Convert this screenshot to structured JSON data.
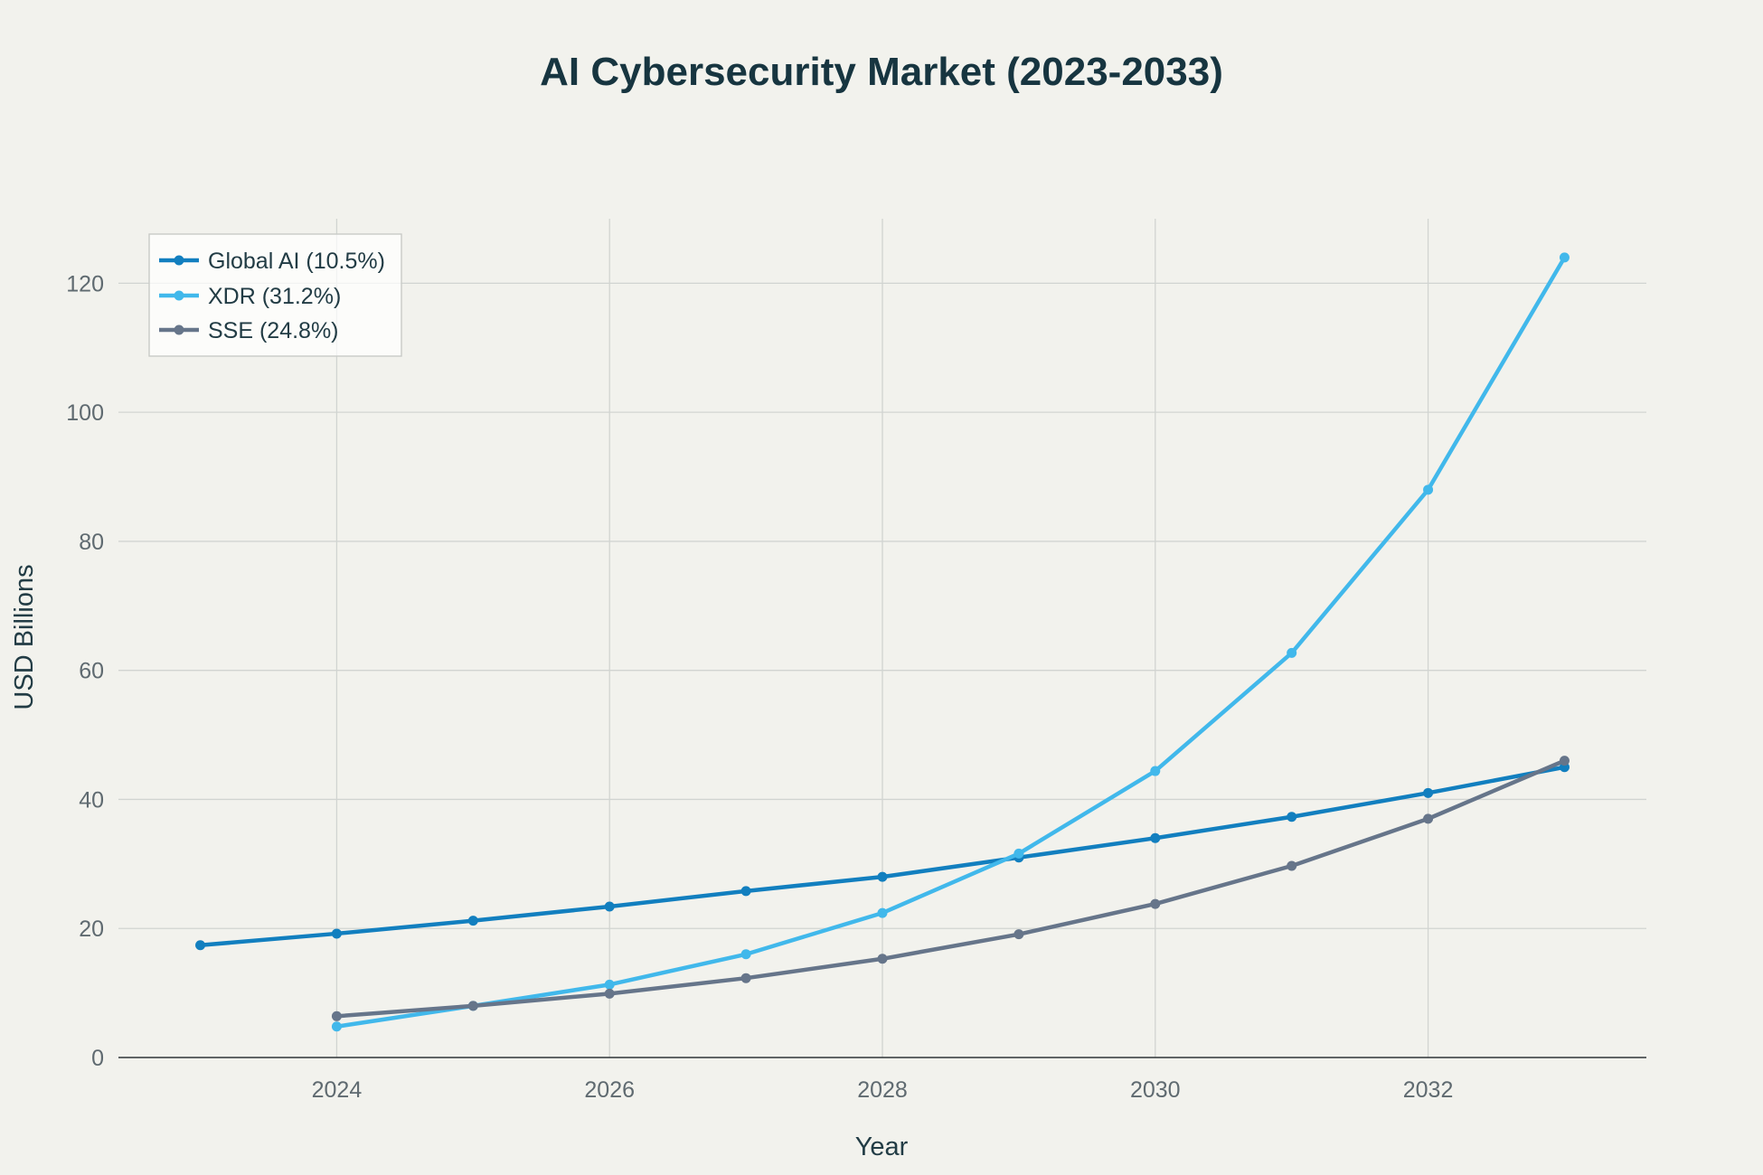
{
  "chart_data": {
    "type": "line",
    "title": "AI Cybersecurity Market (2023-2033)",
    "xlabel": "Year",
    "ylabel": "USD Billions",
    "xlim": [
      2022.4,
      2033.6
    ],
    "ylim": [
      0,
      130
    ],
    "x_ticks": [
      2024,
      2026,
      2028,
      2030,
      2032
    ],
    "y_ticks": [
      0,
      20,
      40,
      60,
      80,
      100,
      120
    ],
    "grid": true,
    "legend_position": "top-left",
    "series": [
      {
        "name": "Global AI (10.5%)",
        "color": "#127fbf",
        "x": [
          2023,
          2024,
          2025,
          2026,
          2027,
          2028,
          2029,
          2030,
          2031,
          2032,
          2033
        ],
        "values": [
          17.4,
          19.2,
          21.2,
          23.4,
          25.8,
          28.0,
          31.0,
          34.0,
          37.3,
          41.0,
          45.0
        ]
      },
      {
        "name": "XDR (31.2%)",
        "color": "#41b8eb",
        "x": [
          2024,
          2025,
          2026,
          2027,
          2028,
          2029,
          2030,
          2031,
          2032,
          2033
        ],
        "values": [
          4.8,
          8.0,
          11.3,
          16.0,
          22.4,
          31.6,
          44.4,
          62.7,
          88.0,
          124.0
        ]
      },
      {
        "name": "SSE (24.8%)",
        "color": "#66758a",
        "x": [
          2024,
          2025,
          2026,
          2027,
          2028,
          2029,
          2030,
          2031,
          2032,
          2033
        ],
        "values": [
          6.4,
          8.0,
          9.9,
          12.3,
          15.3,
          19.1,
          23.8,
          29.7,
          37.0,
          46.0
        ]
      }
    ]
  }
}
